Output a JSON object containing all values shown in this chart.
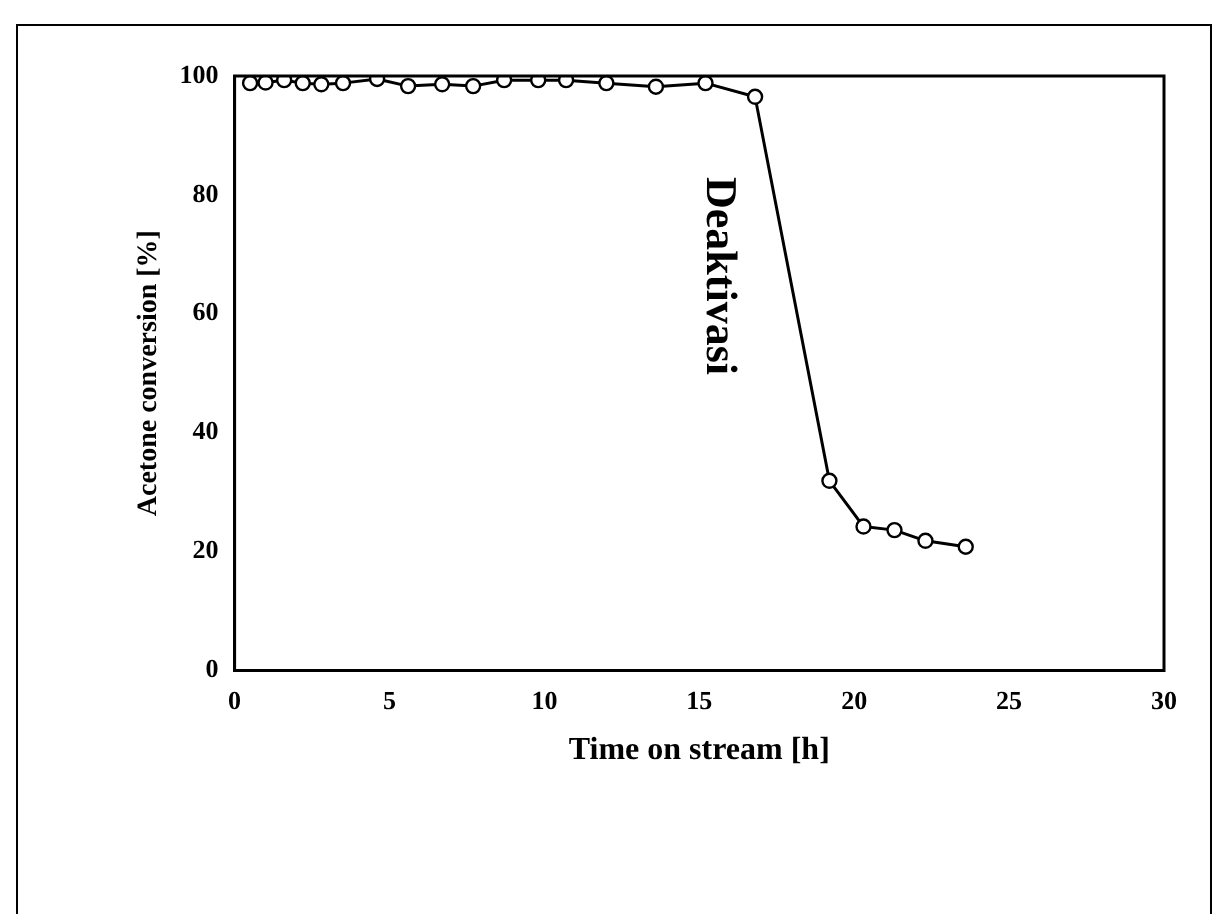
{
  "chart_data": {
    "type": "line",
    "xlabel": "Time on stream [h]",
    "ylabel": "Acetone conversion [%]",
    "annotations": [
      "Deaktivasi"
    ],
    "x": [
      0.5,
      1.0,
      1.6,
      2.2,
      2.8,
      3.5,
      4.6,
      5.6,
      6.7,
      7.7,
      8.7,
      9.8,
      10.7,
      12.0,
      13.6,
      15.2,
      16.8,
      19.2,
      20.3,
      21.3,
      22.3,
      23.6
    ],
    "series": [
      {
        "color": "#000000",
        "values": [
          98.8,
          98.9,
          99.3,
          98.8,
          98.6,
          98.8,
          99.5,
          98.3,
          98.6,
          98.3,
          99.3,
          99.3,
          99.3,
          98.8,
          98.2,
          98.8,
          96.5,
          31.9,
          24.2,
          23.6,
          21.8,
          20.8
        ]
      }
    ],
    "xlim": [
      0,
      30
    ],
    "xticks": [
      0,
      5,
      10,
      15,
      20,
      25,
      30
    ],
    "ylim": [
      0,
      100
    ],
    "yticks": [
      0,
      20,
      40,
      60,
      80,
      100
    ],
    "grid": false,
    "legend": false,
    "marker": "circle",
    "line_style": "solid"
  }
}
